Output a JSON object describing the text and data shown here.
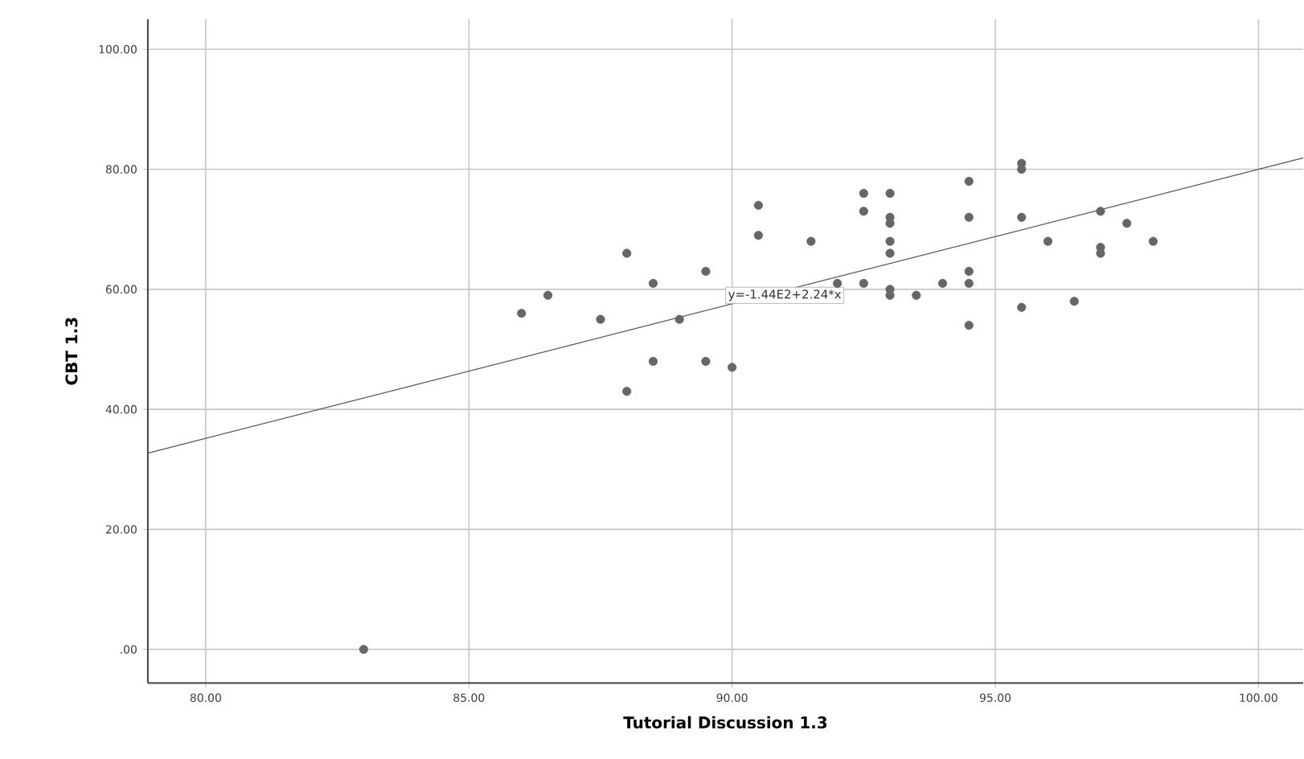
{
  "chart_data": {
    "type": "scatter",
    "xlabel": "Tutorial Discussion 1.3",
    "ylabel": "CBT 1.3",
    "xlim": [
      78.9,
      100.85
    ],
    "ylim": [
      -5.6,
      105
    ],
    "xticks": [
      {
        "value": 80,
        "label": "80.00"
      },
      {
        "value": 85,
        "label": "85.00"
      },
      {
        "value": 90,
        "label": "90.00"
      },
      {
        "value": 95,
        "label": "95.00"
      },
      {
        "value": 100,
        "label": "100.00"
      }
    ],
    "yticks": [
      {
        "value": 0,
        "label": ".00"
      },
      {
        "value": 20,
        "label": "20.00"
      },
      {
        "value": 40,
        "label": "40.00"
      },
      {
        "value": 60,
        "label": "60.00"
      },
      {
        "value": 80,
        "label": "80.00"
      },
      {
        "value": 100,
        "label": "100.00"
      }
    ],
    "grid": true,
    "series": [
      {
        "marker": "circle",
        "color": "#666666",
        "x": [
          83,
          86,
          86.5,
          87.5,
          88,
          88,
          88.5,
          88.5,
          89,
          89.5,
          89.5,
          90,
          90.5,
          90.5,
          91.5,
          92,
          92.5,
          92.5,
          92.5,
          93,
          93,
          93,
          93,
          93,
          93,
          93,
          93.5,
          94,
          94.5,
          94.5,
          94.5,
          94.5,
          94.5,
          95.5,
          95.5,
          95.5,
          95.5,
          96,
          96.5,
          97,
          97,
          97,
          97.5,
          98
        ],
        "values": [
          0,
          56,
          59,
          55,
          66,
          43,
          61,
          48,
          55,
          63,
          48,
          47,
          74,
          69,
          68,
          61,
          76,
          73,
          61,
          76,
          72,
          71,
          68,
          66,
          60,
          59,
          59,
          61,
          78,
          72,
          63,
          61,
          54,
          81,
          80,
          72,
          57,
          68,
          58,
          73,
          67,
          66,
          71,
          68
        ]
      },
      {
        "type": "line",
        "marker": "none",
        "color": "#555555",
        "x": [
          78.9,
          100.85
        ],
        "values": [
          32.7,
          81.9
        ]
      }
    ],
    "annotations": [
      {
        "text": "y=-1.44E2+2.24*x",
        "x": 91,
        "y": 59
      }
    ]
  }
}
